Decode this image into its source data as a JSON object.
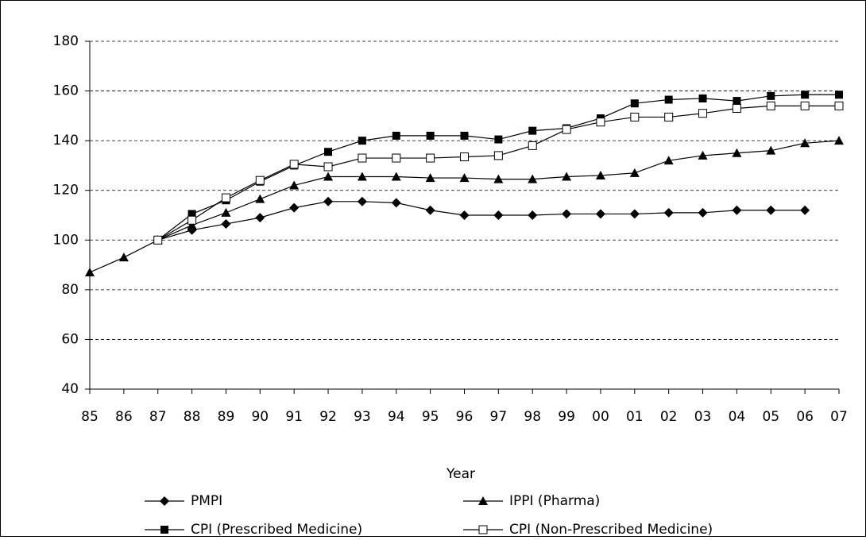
{
  "chart_data": {
    "type": "line",
    "x_label": "Year",
    "categories": [
      "85",
      "86",
      "87",
      "88",
      "89",
      "90",
      "91",
      "92",
      "93",
      "94",
      "95",
      "96",
      "97",
      "98",
      "99",
      "00",
      "01",
      "02",
      "03",
      "04",
      "05",
      "06",
      "07"
    ],
    "ylim": [
      40,
      180
    ],
    "yticks": [
      40,
      60,
      80,
      100,
      120,
      140,
      160,
      180
    ],
    "grid": true,
    "series": [
      {
        "name": "PMPI",
        "color": "#000000",
        "marker": "diamond",
        "values": [
          null,
          null,
          100,
          104,
          106.5,
          109,
          113,
          115.5,
          115.5,
          115,
          112,
          110,
          110,
          110,
          110.5,
          110.5,
          110.5,
          111,
          111,
          112,
          112,
          112,
          null
        ]
      },
      {
        "name": "IPPI (Pharma)",
        "color": "#000000",
        "marker": "triangle",
        "values": [
          87,
          93,
          100,
          106,
          111,
          116.5,
          122,
          125.5,
          125.5,
          125.5,
          125,
          125,
          124.5,
          124.5,
          125.5,
          126,
          127,
          132,
          134,
          135,
          136,
          139,
          140
        ]
      },
      {
        "name": "CPI (Prescribed Medicine)",
        "color": "#000000",
        "marker": "square",
        "values": [
          null,
          null,
          100,
          110.5,
          116,
          123.5,
          130,
          135.5,
          140,
          142,
          142,
          142,
          140.5,
          144,
          145,
          149,
          155,
          156.5,
          157,
          156,
          158,
          158.5,
          158.5
        ]
      },
      {
        "name": "CPI (Non-Prescribed Medicine)",
        "color": "#000000",
        "marker": "open-square",
        "values": [
          null,
          null,
          100,
          108,
          117,
          124,
          130.5,
          129.5,
          133,
          133,
          133,
          133.5,
          134,
          138,
          144.5,
          147.5,
          149.5,
          149.5,
          151,
          153,
          154,
          154,
          154
        ]
      }
    ]
  }
}
